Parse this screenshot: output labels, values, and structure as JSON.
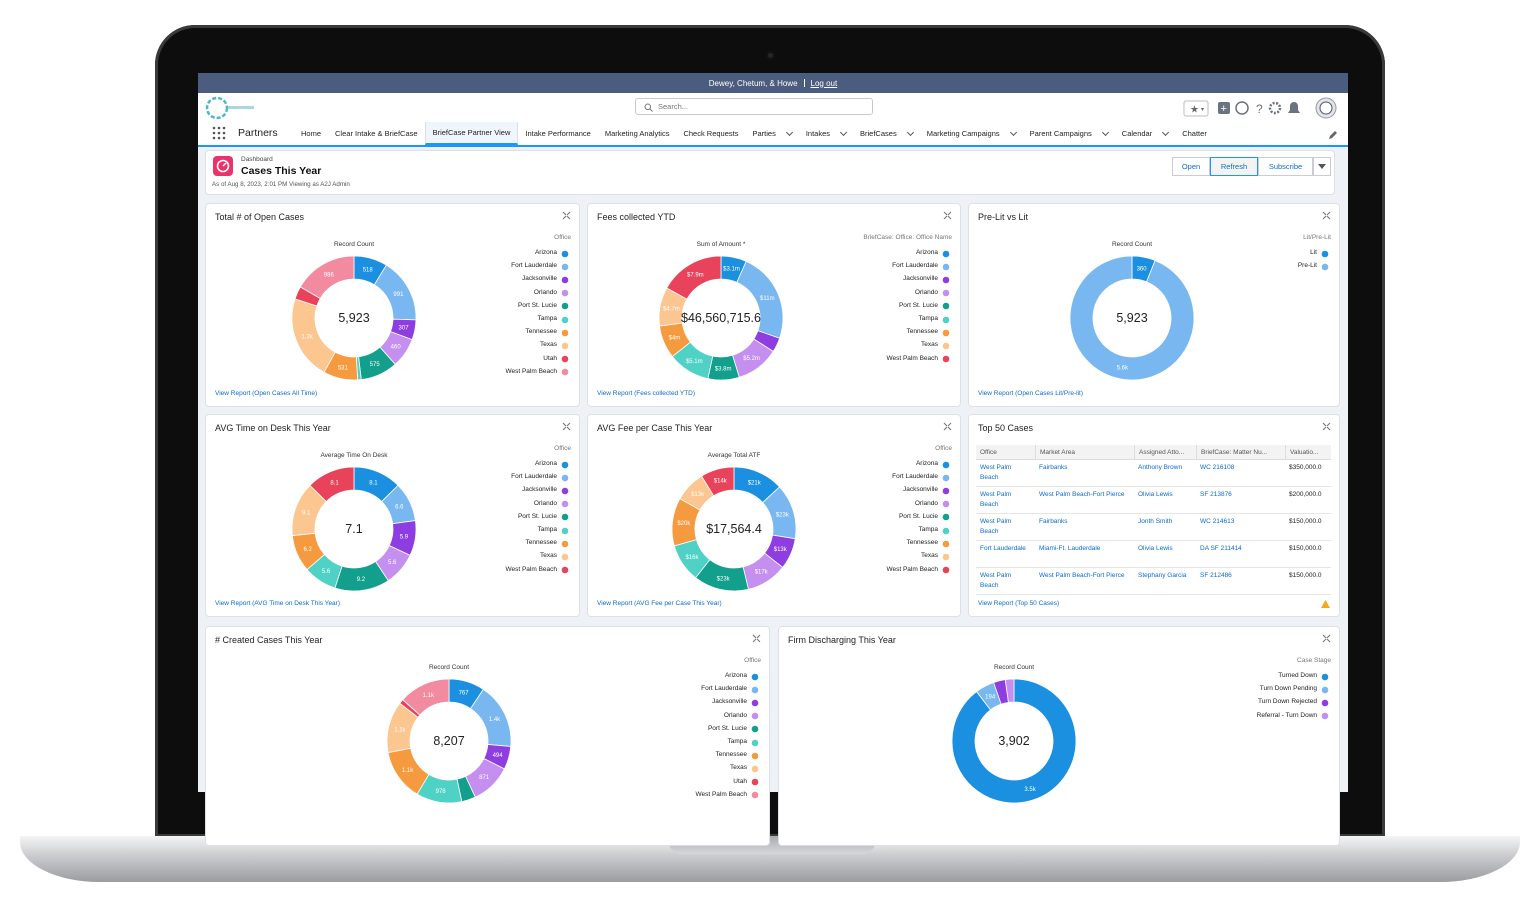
{
  "topbar": {
    "user": "Dewey, Chetum, & Howe",
    "logout": "Log out"
  },
  "header": {
    "search": "Search..."
  },
  "nav": {
    "app": "Partners",
    "tabs": [
      {
        "label": "Home"
      },
      {
        "label": "Clear Intake & BriefCase"
      },
      {
        "label": "BriefCase Partner View",
        "active": true
      },
      {
        "label": "Intake Performance"
      },
      {
        "label": "Marketing Analytics"
      },
      {
        "label": "Check Requests"
      },
      {
        "label": "Parties",
        "menu": true
      },
      {
        "label": "Intakes",
        "menu": true
      },
      {
        "label": "BriefCases",
        "menu": true
      },
      {
        "label": "Marketing Campaigns",
        "menu": true
      },
      {
        "label": "Parent Campaigns",
        "menu": true
      },
      {
        "label": "Calendar",
        "menu": true
      },
      {
        "label": "Chatter"
      }
    ]
  },
  "dashboard": {
    "kicker": "Dashboard",
    "title": "Cases This Year",
    "subtitle": "As of Aug 8, 2023, 2:01 PM Viewing as A2J Admin",
    "buttons": [
      "Open",
      "Refresh",
      "Subscribe"
    ],
    "widgets": [
      {
        "title": "Total # of Open Cases",
        "link": "View Report (Open Cases All Time)",
        "chart": {
          "type": "donut",
          "measure": "Record Count",
          "legend_title": "Office",
          "total": "5,923",
          "categories": [
            "Arizona",
            "Fort Lauderdale",
            "Jacksonville",
            "Orlando",
            "Port St. Lucie",
            "Tampa",
            "Tennessee",
            "Texas",
            "Utah",
            "West Palm Beach"
          ],
          "values": [
            518,
            991,
            307,
            460,
            575,
            55,
            531,
            1300,
            200,
            986
          ],
          "value_labels": [
            "518",
            "991",
            "307",
            "460",
            "575",
            null,
            "531",
            "1.3k",
            null,
            "986"
          ],
          "colors": [
            "#1b8fe0",
            "#78b7ef",
            "#8e3de0",
            "#c58ff0",
            "#129f8c",
            "#4fd1c5",
            "#f59a3e",
            "#fbc68f",
            "#e8435a",
            "#f28aa0"
          ]
        }
      },
      {
        "title": "Fees collected YTD",
        "link": "View Report (Fees collected YTD)",
        "chart": {
          "type": "donut",
          "measure": "Sum of Amount *",
          "legend_title": "BriefCase: Office: Office Name",
          "total": "$46,560,715.6",
          "categories": [
            "Arizona",
            "Fort Lauderdale",
            "Jacksonville",
            "Orlando",
            "Port St. Lucie",
            "Tampa",
            "Tennessee",
            "Texas",
            "West Palm Beach"
          ],
          "values": [
            3.1,
            11,
            1.76,
            5.2,
            3.8,
            5.1,
            4,
            4.7,
            7.9
          ],
          "value_labels": [
            "$3.1m",
            "$11m",
            null,
            "$5.2m",
            "$3.8m",
            "$5.1m",
            "$4m",
            "$4.7m",
            "$7.9m"
          ],
          "colors": [
            "#1b8fe0",
            "#78b7ef",
            "#8e3de0",
            "#c58ff0",
            "#129f8c",
            "#4fd1c5",
            "#f59a3e",
            "#fbc68f",
            "#e8435a"
          ]
        }
      },
      {
        "title": "Pre-Lit vs Lit",
        "link": "View Report (Open Cases Lit/Pre-lit)",
        "chart": {
          "type": "donut",
          "measure": "Record Count",
          "legend_title": "Lit/Pre-Lit",
          "total": "5,923",
          "categories": [
            "Lit",
            "Pre-Lit"
          ],
          "values": [
            360,
            5563
          ],
          "value_labels": [
            "360",
            "5.6k"
          ],
          "colors": [
            "#1b8fe0",
            "#78b7ef"
          ]
        }
      },
      {
        "title": "AVG Time on Desk This Year",
        "link": "View Report (AVG Time on Desk This Year)",
        "chart": {
          "type": "donut",
          "measure": "Average Time On Desk",
          "legend_title": "Office",
          "total": "7.1",
          "categories": [
            "Arizona",
            "Fort Lauderdale",
            "Jacksonville",
            "Orlando",
            "Port St. Lucie",
            "Tampa",
            "Tennessee",
            "Texas",
            "West Palm Beach"
          ],
          "values": [
            8.1,
            6.6,
            5.9,
            5.6,
            9.2,
            5.6,
            6.2,
            9.1,
            8.1
          ],
          "colors": [
            "#1b8fe0",
            "#78b7ef",
            "#8e3de0",
            "#c58ff0",
            "#129f8c",
            "#4fd1c5",
            "#f59a3e",
            "#fbc68f",
            "#e8435a"
          ]
        }
      },
      {
        "title": "AVG Fee per Case This Year",
        "link": "View Report (AVG Fee per Case This Year)",
        "chart": {
          "type": "donut",
          "measure": "Average Total ATF",
          "legend_title": "Office",
          "total": "$17,564.4",
          "categories": [
            "Arizona",
            "Fort Lauderdale",
            "Jacksonville",
            "Orlando",
            "Port St. Lucie",
            "Tampa",
            "Tennessee",
            "Texas",
            "West Palm Beach"
          ],
          "values": [
            21,
            23,
            13,
            17,
            23,
            16,
            20,
            13,
            14
          ],
          "value_labels": [
            "$21k",
            "$23k",
            "$13k",
            "$17k",
            "$23k",
            "$16k",
            "$20k",
            "$13k",
            "$14k"
          ],
          "colors": [
            "#1b8fe0",
            "#78b7ef",
            "#8e3de0",
            "#c58ff0",
            "#129f8c",
            "#4fd1c5",
            "#f59a3e",
            "#fbc68f",
            "#e8435a"
          ]
        }
      },
      {
        "title": "Top 50 Cases",
        "link": "View Report (Top 50 Cases)",
        "table": {
          "columns": [
            "Office",
            "Market Area",
            "Assigned Atto...",
            "BriefCase: Matter Nu...",
            "Valuatio..."
          ],
          "rows": [
            [
              "West Palm Beach",
              "Fairbanks",
              "Anthony Brown",
              "WC 216108",
              "$350,000.0"
            ],
            [
              "West Palm Beach",
              "West Palm Beach-Fort Pierce",
              "Olivia Lewis",
              "SF 213876",
              "$200,000.0"
            ],
            [
              "West Palm Beach",
              "Fairbanks",
              "Jonth Smith",
              "WC 214613",
              "$150,000.0"
            ],
            [
              "Fort Lauderdale",
              "Miami-Ft. Lauderdale",
              "Olivia Lewis",
              "DA SF 211414",
              "$150,000.0"
            ],
            [
              "West Palm Beach",
              "West Palm Beach-Fort Pierce",
              "Stephany Garcia",
              "SF 212486",
              "$150,000.0"
            ]
          ]
        }
      },
      {
        "title": "# Created Cases This Year",
        "chart": {
          "type": "donut",
          "measure": "Record Count",
          "legend_title": "Office",
          "total": "8,207",
          "categories": [
            "Arizona",
            "Fort Lauderdale",
            "Jacksonville",
            "Orlando",
            "Port St. Lucie",
            "Tampa",
            "Tennessee",
            "Texas",
            "Utah",
            "West Palm Beach"
          ],
          "values": [
            767,
            1400,
            494,
            871,
            300,
            978,
            1100,
            1100,
            97,
            1100
          ],
          "value_labels": [
            "767",
            "1.4k",
            "494",
            "871",
            null,
            "978",
            "1.1k",
            "1.1k",
            null,
            "1.1k"
          ],
          "colors": [
            "#1b8fe0",
            "#78b7ef",
            "#8e3de0",
            "#c58ff0",
            "#129f8c",
            "#4fd1c5",
            "#f59a3e",
            "#fbc68f",
            "#e8435a",
            "#f28aa0"
          ]
        }
      },
      {
        "title": "Firm Discharging This Year",
        "chart": {
          "type": "donut",
          "measure": "Record Count",
          "legend_title": "Case Stage",
          "total": "3,902",
          "categories": [
            "Turned Down",
            "Turn Down Pending",
            "Turn Down Rejected",
            "Referral - Turn Down"
          ],
          "values": [
            3500,
            194,
            120,
            88
          ],
          "value_labels": [
            "3.5k",
            "194",
            null,
            null
          ],
          "colors": [
            "#1b8fe0",
            "#78b7ef",
            "#8e3de0",
            "#c58ff0"
          ]
        }
      }
    ]
  }
}
